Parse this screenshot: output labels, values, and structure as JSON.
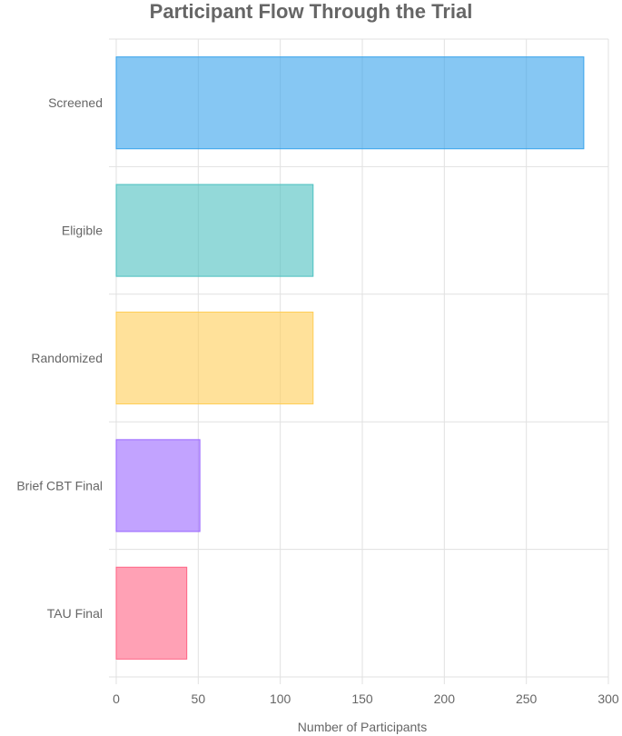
{
  "chart_data": {
    "type": "bar",
    "orientation": "horizontal",
    "title": "Participant Flow Through the Trial",
    "xlabel": "Number of Participants",
    "ylabel": "",
    "xlim": [
      0,
      300
    ],
    "x_ticks": [
      0,
      50,
      100,
      150,
      200,
      250,
      300
    ],
    "grid": true,
    "legend": "none",
    "categories": [
      "Screened",
      "Eligible",
      "Randomized",
      "Brief CBT Final",
      "TAU Final"
    ],
    "values": [
      285,
      120,
      120,
      51,
      43
    ],
    "colors": [
      "#36a2eb",
      "#4bc0c0",
      "#ffcd56",
      "#9966ff",
      "#ff6384"
    ]
  }
}
